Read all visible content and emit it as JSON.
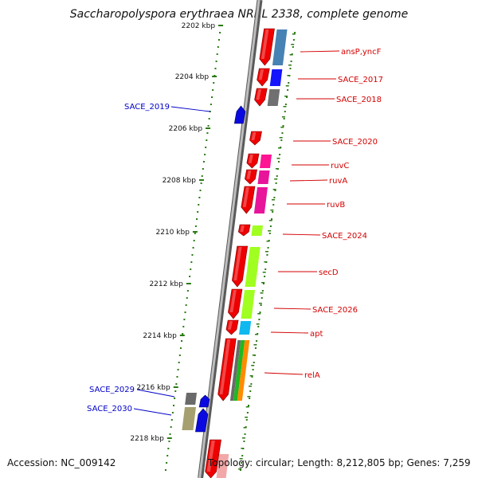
{
  "title": "Saccharopolyspora erythraea NRRL 2338, complete genome",
  "footer": {
    "accession": "Accession: NC_009142",
    "summary": "Topology: circular; Length: 8,212,805 bp; Genes: 7,259"
  },
  "colors": {
    "backbone": "#8c8c8c",
    "tick": "#2a7a14",
    "forward_label": "#d40000",
    "reverse_label": "#0000c8",
    "gene_red": "#ee0000",
    "gene_blue": "#0a0ae0",
    "gene_gray": "#6a6a6a",
    "gene_olive": "#a6a070",
    "cog_steelblue": "#4682b4",
    "cog_blue": "#1414ff",
    "cog_gray": "#707070",
    "cog_pink": "#ff1493",
    "cog_magenta": "#e8149a",
    "cog_lime": "#a0ff20",
    "cog_cyan": "#10b8f0",
    "cog_green": "#20b820",
    "cog_orange": "#ff8c00"
  },
  "kbp_ticks": [
    "2202 kbp",
    "2204 kbp",
    "2206 kbp",
    "2208 kbp",
    "2210 kbp",
    "2212 kbp",
    "2214 kbp",
    "2216 kbp",
    "2218 kbp"
  ],
  "forward_genes": [
    "ansP,yncF",
    "SACE_2017",
    "SACE_2018",
    "SACE_2020",
    "ruvC",
    "ruvA",
    "ruvB",
    "SACE_2024",
    "secD",
    "SACE_2026",
    "apt",
    "relA"
  ],
  "reverse_genes": [
    "SACE_2019",
    "SACE_2029",
    "SACE_2030"
  ]
}
